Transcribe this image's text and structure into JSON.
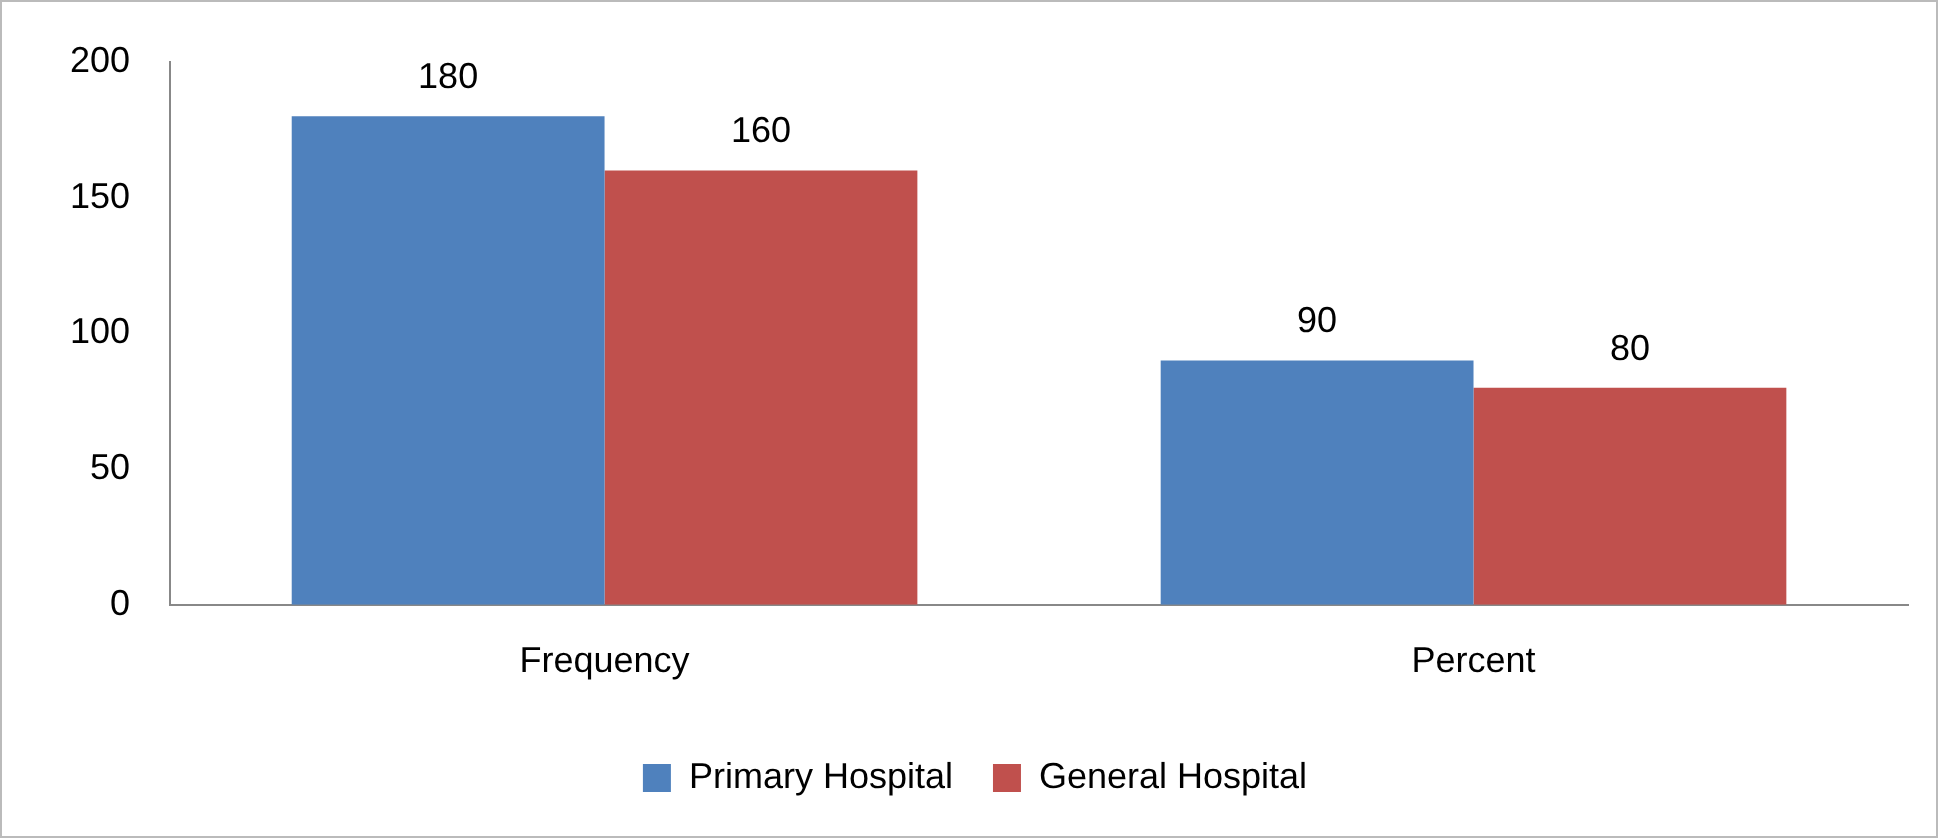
{
  "chart_data": {
    "type": "bar",
    "categories": [
      "Frequency",
      "Percent"
    ],
    "series": [
      {
        "name": "Primary Hospital",
        "color": "#4f81bd",
        "values": [
          180,
          90
        ]
      },
      {
        "name": "General Hospital",
        "color": "#c0504d",
        "values": [
          160,
          80
        ]
      }
    ],
    "ylim": [
      0,
      200
    ],
    "yticks": [
      0,
      50,
      100,
      150,
      200
    ],
    "grid": false,
    "legend": "bottom",
    "data_labels": true
  }
}
